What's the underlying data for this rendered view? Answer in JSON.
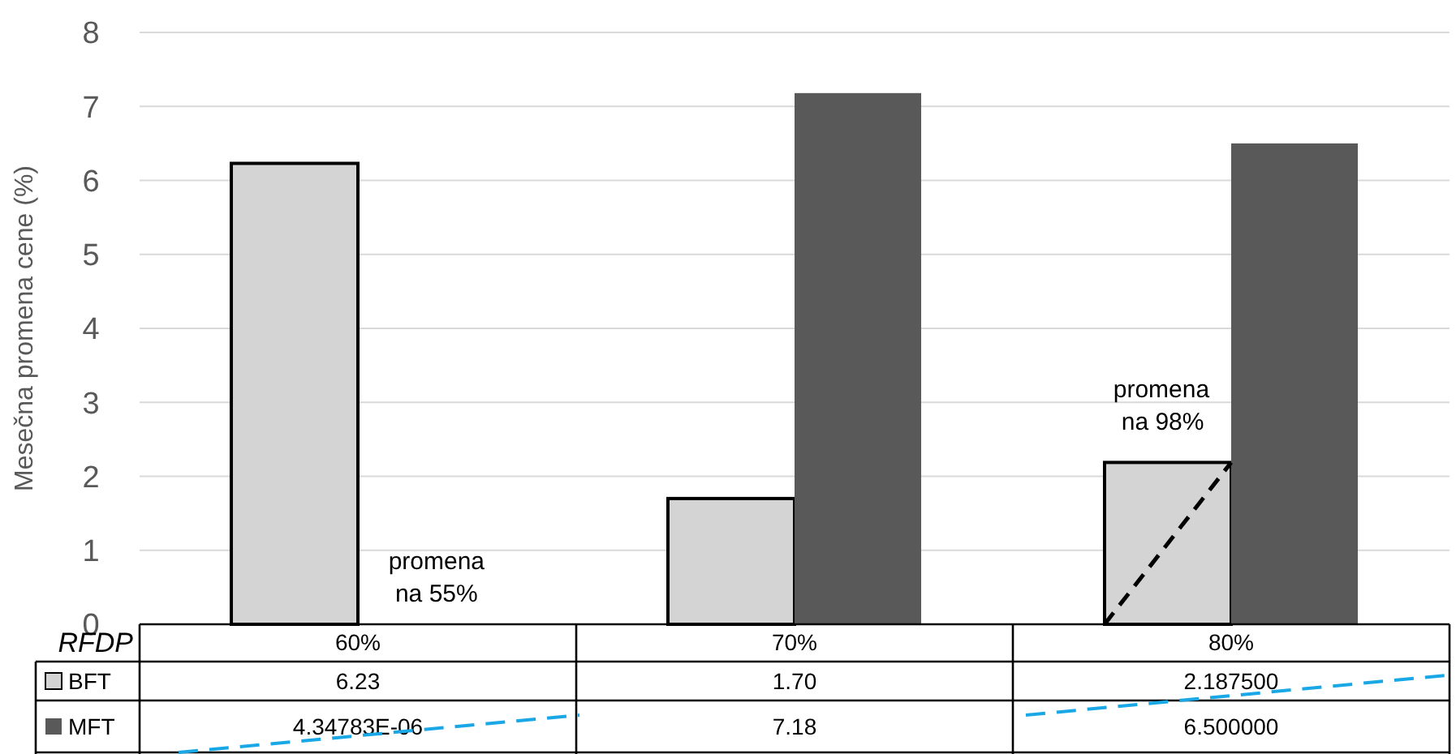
{
  "chart_data": {
    "type": "bar",
    "ylabel": "Mesečna promena cene (%)",
    "legend_title": "RFDP",
    "categories": [
      "60%",
      "70%",
      "80%"
    ],
    "series": [
      {
        "name": "BFT",
        "color": "#d4d4d4",
        "values": [
          6.23,
          1.7,
          2.1875
        ],
        "value_labels": [
          "6.23",
          "1.70",
          "2.187500"
        ]
      },
      {
        "name": "MFT",
        "color": "#595959",
        "values": [
          4.34783e-06,
          7.18,
          6.5
        ],
        "value_labels": [
          "4.34783E-06",
          "7.18",
          "6.500000"
        ]
      }
    ],
    "ylim": [
      0,
      8
    ],
    "yticks": [
      0,
      1,
      2,
      3,
      4,
      5,
      6,
      7,
      8
    ],
    "grid": "y",
    "legend": "bottom",
    "annotations": [
      "promena na 55%",
      "promena na 98%"
    ]
  }
}
